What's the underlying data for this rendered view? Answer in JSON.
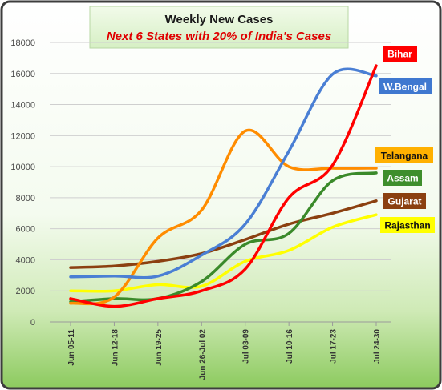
{
  "chart_data": {
    "type": "line",
    "title": "Weekly New Cases",
    "subtitle": "Next 6 States with 20% of India's Cases",
    "xlabel": "",
    "ylabel": "",
    "categories": [
      "Jun 05-11",
      "Jun 12-18",
      "Jun 19-25",
      "Jun 26-Jul 02",
      "Jul 03-09",
      "Jul 10-16",
      "Jul 17-23",
      "Jul 24-30"
    ],
    "ylim": [
      0,
      18000
    ],
    "yticks": [
      0,
      2000,
      4000,
      6000,
      8000,
      10000,
      12000,
      14000,
      16000,
      18000
    ],
    "grid": true,
    "legend": "labels at right",
    "series": [
      {
        "name": "Bihar",
        "color": "#ff0000",
        "label_bg": "#ff0000",
        "label_fg": "#ffffff",
        "values": [
          1500,
          1000,
          1500,
          2000,
          3400,
          8000,
          10100,
          16500
        ]
      },
      {
        "name": "W.Bengal",
        "color": "#4a7fd4",
        "label_bg": "#3f78d0",
        "label_fg": "#ffffff",
        "values": [
          2900,
          2950,
          2950,
          4300,
          6300,
          11000,
          15950,
          15850
        ]
      },
      {
        "name": "Telangana",
        "color": "#ff8c00",
        "label_bg": "#ffb000",
        "label_fg": "#111111",
        "values": [
          1200,
          1600,
          5400,
          7200,
          12300,
          10000,
          9900,
          9900
        ]
      },
      {
        "name": "Assam",
        "color": "#3a8a2a",
        "label_bg": "#3e8e2c",
        "label_fg": "#ffffff",
        "values": [
          1300,
          1500,
          1500,
          2600,
          5000,
          5700,
          9100,
          9600
        ]
      },
      {
        "name": "Gujarat",
        "color": "#8b4010",
        "label_bg": "#8b4010",
        "label_fg": "#ffffff",
        "values": [
          3500,
          3600,
          3900,
          4400,
          5300,
          6300,
          7000,
          7800
        ]
      },
      {
        "name": "Rajasthan",
        "color": "#ffff00",
        "label_bg": "#ffff00",
        "label_fg": "#111111",
        "values": [
          2000,
          2000,
          2400,
          2300,
          3900,
          4600,
          6100,
          6900
        ]
      }
    ]
  }
}
